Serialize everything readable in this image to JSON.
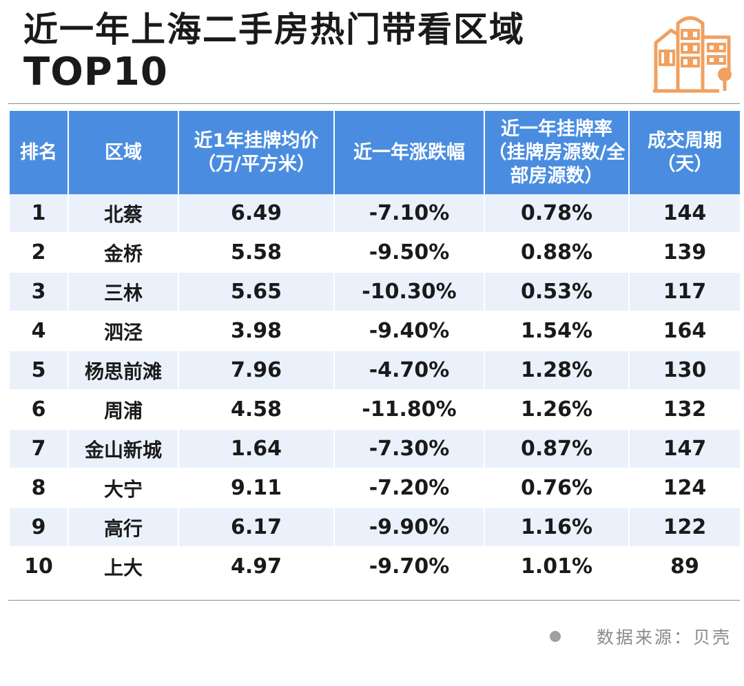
{
  "title": {
    "line1": "近一年上海二手房热门带看区域",
    "line2": "TOP10"
  },
  "colors": {
    "header_bg": "#4a8de0",
    "row_odd_bg": "#eaf1fb",
    "accent_logo": "#f0a060"
  },
  "logo": {
    "icon": "buildings-icon"
  },
  "source": {
    "text": "数据来源：贝壳"
  },
  "chart_data": {
    "type": "table",
    "columns": [
      "排名",
      "区域",
      "近1年挂牌均价（万/平方米）",
      "近一年涨跌幅",
      "近一年挂牌率（挂牌房源数/全部房源数）",
      "成交周期（天）"
    ],
    "rows": [
      [
        "1",
        "北蔡",
        "6.49",
        "-7.10%",
        "0.78%",
        "144"
      ],
      [
        "2",
        "金桥",
        "5.58",
        "-9.50%",
        "0.88%",
        "139"
      ],
      [
        "3",
        "三林",
        "5.65",
        "-10.30%",
        "0.53%",
        "117"
      ],
      [
        "4",
        "泗泾",
        "3.98",
        "-9.40%",
        "1.54%",
        "164"
      ],
      [
        "5",
        "杨思前滩",
        "7.96",
        "-4.70%",
        "1.28%",
        "130"
      ],
      [
        "6",
        "周浦",
        "4.58",
        "-11.80%",
        "1.26%",
        "132"
      ],
      [
        "7",
        "金山新城",
        "1.64",
        "-7.30%",
        "0.87%",
        "147"
      ],
      [
        "8",
        "大宁",
        "9.11",
        "-7.20%",
        "0.76%",
        "124"
      ],
      [
        "9",
        "高行",
        "6.17",
        "-9.90%",
        "1.16%",
        "122"
      ],
      [
        "10",
        "上大",
        "4.97",
        "-9.70%",
        "1.01%",
        "89"
      ]
    ]
  }
}
